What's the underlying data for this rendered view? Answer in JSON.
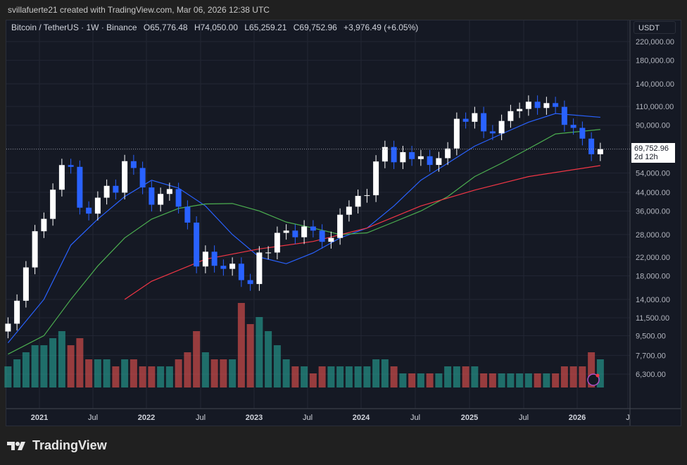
{
  "credit": "svillafuerte21 created with TradingView.com, Mar 06, 2026 12:38 UTC",
  "legend": {
    "symbol": "Bitcoin / TetherUS · 1W · Binance",
    "open": "O65,776.48",
    "high": "H74,050.00",
    "low": "L65,259.21",
    "close": "C69,752.96",
    "change": "+3,976.49 (+6.05%)"
  },
  "currency": "USDT",
  "last_price": {
    "price": "69,752.96",
    "countdown": "2d 12h"
  },
  "logo": "TradingView",
  "colors": {
    "background": "#151924",
    "up": "#ffffff",
    "down": "#2962ff",
    "ma_fast": "#2962ff",
    "ma_mid": "#4caf50",
    "ma_slow": "#f23645",
    "vol_up": "#26a69a",
    "vol_down": "#ef5350"
  },
  "chart_data": {
    "type": "candlestick",
    "scale": "log",
    "ylim": [
      5800,
      260000
    ],
    "y_ticks": [
      "220,000.00",
      "180,000.00",
      "140,000.00",
      "110,000.00",
      "90,000.00",
      "54,000.00",
      "44,000.00",
      "36,000.00",
      "28,000.00",
      "22,000.00",
      "18,000.00",
      "14,000.00",
      "11,500.00",
      "9,500.00",
      "7,700.00",
      "6,300.00"
    ],
    "x_ticks": [
      "2021",
      "Jul",
      "2022",
      "Jul",
      "2023",
      "Jul",
      "2024",
      "Jul",
      "2025",
      "Jul",
      "2026",
      "J"
    ],
    "closes": [
      [
        "2020-09",
        10800
      ],
      [
        "2020-10",
        13800
      ],
      [
        "2020-11",
        19700
      ],
      [
        "2020-12",
        29000
      ],
      [
        "2021-01",
        33100
      ],
      [
        "2021-02",
        45200
      ],
      [
        "2021-03",
        58800
      ],
      [
        "2021-04",
        57700
      ],
      [
        "2021-05",
        37300
      ],
      [
        "2021-06",
        35000
      ],
      [
        "2021-07",
        41500
      ],
      [
        "2021-08",
        47100
      ],
      [
        "2021-09",
        43800
      ],
      [
        "2021-10",
        61300
      ],
      [
        "2021-11",
        57000
      ],
      [
        "2021-12",
        46300
      ],
      [
        "2022-01",
        38500
      ],
      [
        "2022-02",
        43200
      ],
      [
        "2022-03",
        45500
      ],
      [
        "2022-04",
        37700
      ],
      [
        "2022-05",
        31800
      ],
      [
        "2022-06",
        19900
      ],
      [
        "2022-07",
        23300
      ],
      [
        "2022-08",
        20050
      ],
      [
        "2022-09",
        19400
      ],
      [
        "2022-10",
        20500
      ],
      [
        "2022-11",
        17200
      ],
      [
        "2022-12",
        16500
      ],
      [
        "2023-01",
        23100
      ],
      [
        "2023-02",
        23100
      ],
      [
        "2023-03",
        28500
      ],
      [
        "2023-04",
        29200
      ],
      [
        "2023-05",
        27200
      ],
      [
        "2023-06",
        30500
      ],
      [
        "2023-07",
        29200
      ],
      [
        "2023-08",
        25900
      ],
      [
        "2023-09",
        27000
      ],
      [
        "2023-10",
        34600
      ],
      [
        "2023-11",
        37700
      ],
      [
        "2023-12",
        42300
      ],
      [
        "2024-01",
        42600
      ],
      [
        "2024-02",
        61100
      ],
      [
        "2024-03",
        71300
      ],
      [
        "2024-04",
        60600
      ],
      [
        "2024-05",
        67500
      ],
      [
        "2024-06",
        62700
      ],
      [
        "2024-07",
        64600
      ],
      [
        "2024-08",
        58900
      ],
      [
        "2024-09",
        63300
      ],
      [
        "2024-10",
        70200
      ],
      [
        "2024-11",
        96400
      ],
      [
        "2024-12",
        93400
      ],
      [
        "2025-01",
        102400
      ],
      [
        "2025-02",
        84300
      ],
      [
        "2025-03",
        82500
      ],
      [
        "2025-04",
        94200
      ],
      [
        "2025-05",
        104600
      ],
      [
        "2025-06",
        107100
      ],
      [
        "2025-07",
        115700
      ],
      [
        "2025-08",
        108200
      ],
      [
        "2025-09",
        114000
      ],
      [
        "2025-10",
        109500
      ],
      [
        "2025-11",
        90400
      ],
      [
        "2025-12",
        87500
      ],
      [
        "2026-01",
        78000
      ],
      [
        "2026-02",
        66000
      ],
      [
        "2026-03",
        69752.96
      ]
    ],
    "volume_relative": [
      3,
      4,
      5,
      6,
      6,
      7,
      8,
      6,
      7,
      4,
      4,
      4,
      3,
      4,
      4,
      3,
      3,
      3,
      3,
      4,
      5,
      8,
      5,
      4,
      4,
      4,
      12,
      9,
      10,
      8,
      6,
      4,
      3,
      3,
      2,
      3,
      3,
      3,
      3,
      3,
      3,
      4,
      4,
      3,
      2,
      2,
      2,
      2,
      2,
      3,
      3,
      3,
      3,
      2,
      2,
      2,
      2,
      2,
      2,
      2,
      2,
      2,
      3,
      3,
      3,
      5,
      4
    ],
    "series": [
      {
        "color": "#2962ff",
        "points": [
          [
            "2020-09",
            8800
          ],
          [
            "2021-01",
            14000
          ],
          [
            "2021-04",
            25000
          ],
          [
            "2021-07",
            33000
          ],
          [
            "2021-10",
            42000
          ],
          [
            "2022-01",
            50000
          ],
          [
            "2022-04",
            46000
          ],
          [
            "2022-07",
            38000
          ],
          [
            "2022-10",
            28000
          ],
          [
            "2023-01",
            22000
          ],
          [
            "2023-04",
            20500
          ],
          [
            "2023-07",
            23000
          ],
          [
            "2023-10",
            27000
          ],
          [
            "2024-01",
            30000
          ],
          [
            "2024-04",
            38000
          ],
          [
            "2024-07",
            50000
          ],
          [
            "2024-10",
            60000
          ],
          [
            "2025-01",
            72000
          ],
          [
            "2025-04",
            82000
          ],
          [
            "2025-07",
            93000
          ],
          [
            "2025-10",
            102000
          ],
          [
            "2026-03",
            98000
          ]
        ]
      },
      {
        "color": "#4caf50",
        "points": [
          [
            "2020-09",
            7800
          ],
          [
            "2021-01",
            9500
          ],
          [
            "2021-04",
            14000
          ],
          [
            "2021-07",
            20000
          ],
          [
            "2021-10",
            27000
          ],
          [
            "2022-01",
            33000
          ],
          [
            "2022-04",
            37000
          ],
          [
            "2022-07",
            38800
          ],
          [
            "2022-10",
            39000
          ],
          [
            "2023-01",
            36000
          ],
          [
            "2023-04",
            32000
          ],
          [
            "2023-07",
            30000
          ],
          [
            "2023-10",
            28000
          ],
          [
            "2024-01",
            28500
          ],
          [
            "2024-04",
            32000
          ],
          [
            "2024-07",
            36000
          ],
          [
            "2024-10",
            42000
          ],
          [
            "2025-01",
            52000
          ],
          [
            "2025-04",
            60000
          ],
          [
            "2025-07",
            70000
          ],
          [
            "2025-10",
            82000
          ],
          [
            "2026-03",
            86000
          ]
        ]
      },
      {
        "color": "#f23645",
        "points": [
          [
            "2021-10",
            14000
          ],
          [
            "2022-01",
            17000
          ],
          [
            "2022-07",
            21500
          ],
          [
            "2023-01",
            24000
          ],
          [
            "2023-07",
            26000
          ],
          [
            "2024-01",
            30000
          ],
          [
            "2024-07",
            38000
          ],
          [
            "2025-01",
            45000
          ],
          [
            "2025-07",
            52000
          ],
          [
            "2026-03",
            58500
          ]
        ]
      }
    ]
  }
}
